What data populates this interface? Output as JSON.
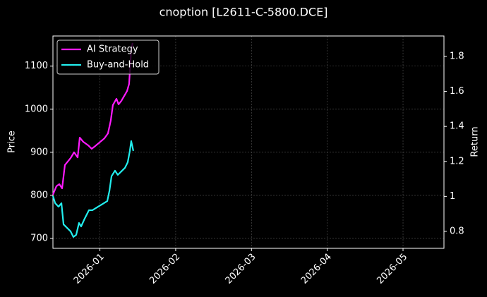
{
  "chart_data": {
    "type": "line",
    "title": "cnoption [L2611-C-5800.DCE]",
    "ylabel": "Price",
    "y2label": "Return",
    "xlim": [
      -0.62,
      4.54
    ],
    "xticks": [
      {
        "value": 0,
        "label": "2026-01"
      },
      {
        "value": 1,
        "label": "2026-02"
      },
      {
        "value": 2,
        "label": "2026-03"
      },
      {
        "value": 3,
        "label": "2026-04"
      },
      {
        "value": 4,
        "label": "2026-05"
      }
    ],
    "ylim": [
      677,
      1170
    ],
    "yticks": [
      700,
      800,
      900,
      1000,
      1100
    ],
    "y2lim": [
      0.703,
      1.917
    ],
    "y2ticks": [
      0.8,
      1.0,
      1.2,
      1.4,
      1.6,
      1.8
    ],
    "grid": true,
    "legend": "upper left",
    "series": [
      {
        "name": "AI Strategy",
        "color": "#ff1aff",
        "axis": "y2",
        "x": [
          -0.62,
          -0.574,
          -0.536,
          -0.499,
          -0.462,
          -0.387,
          -0.341,
          -0.294,
          -0.266,
          -0.22,
          -0.155,
          -0.108,
          -0.061,
          0.06,
          0.106,
          0.143,
          0.171,
          0.218,
          0.246,
          0.283,
          0.358,
          0.385,
          0.413,
          0.432
        ],
        "values": [
          1.01,
          1.058,
          1.07,
          1.046,
          1.179,
          1.219,
          1.252,
          1.223,
          1.336,
          1.312,
          1.292,
          1.272,
          1.288,
          1.332,
          1.36,
          1.433,
          1.522,
          1.558,
          1.526,
          1.546,
          1.602,
          1.643,
          1.84,
          1.877
        ]
      },
      {
        "name": "Buy-and-Hold",
        "color": "#22eeee",
        "axis": "y2",
        "x": [
          -0.62,
          -0.59,
          -0.546,
          -0.508,
          -0.48,
          -0.387,
          -0.35,
          -0.313,
          -0.276,
          -0.248,
          -0.201,
          -0.145,
          -0.099,
          0.097,
          0.125,
          0.153,
          0.199,
          0.236,
          0.283,
          0.33,
          0.367,
          0.395,
          0.413,
          0.441
        ],
        "values": [
          1.002,
          0.961,
          0.941,
          0.961,
          0.84,
          0.8,
          0.768,
          0.78,
          0.848,
          0.828,
          0.873,
          0.921,
          0.921,
          0.973,
          1.03,
          1.115,
          1.147,
          1.123,
          1.143,
          1.163,
          1.195,
          1.26,
          1.316,
          1.26
        ]
      }
    ]
  }
}
